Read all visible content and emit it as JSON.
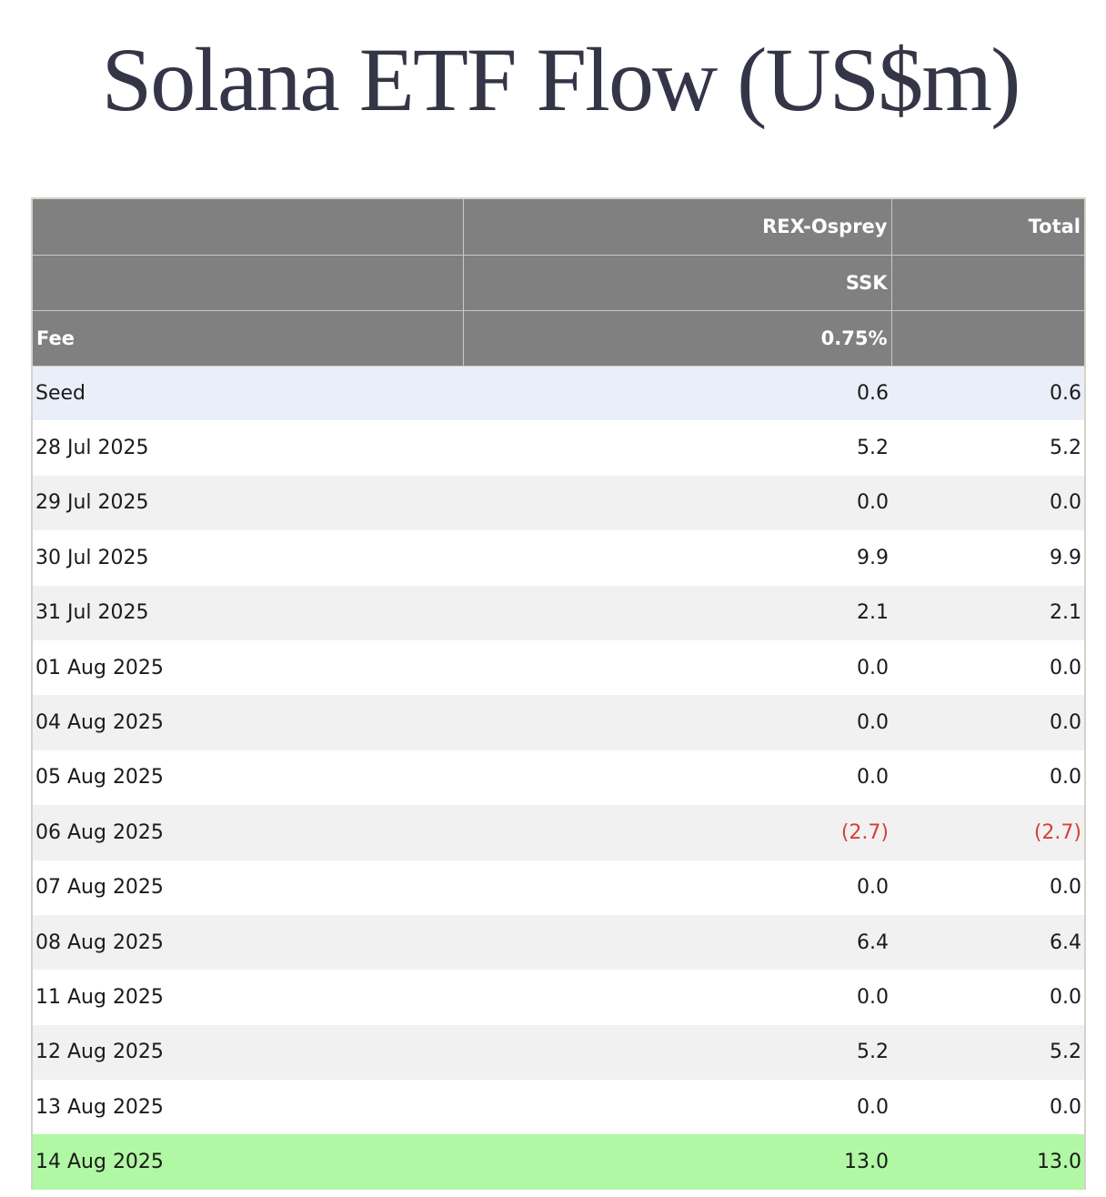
{
  "title": "Solana ETF Flow (US$m)",
  "colors": {
    "title": "#353548",
    "header_bg": "#808080",
    "seed_row_bg": "#e9eef8",
    "alt_row_bg": "#f1f1f1",
    "highlight_row_bg": "#b0f8a4",
    "negative_text": "#dc3c36"
  },
  "header": {
    "row1": [
      "",
      "REX-Osprey",
      "Total"
    ],
    "row2": [
      "",
      "SSK",
      ""
    ],
    "row3": [
      "Fee",
      "0.75%",
      ""
    ]
  },
  "rows": [
    {
      "date": "Seed",
      "ssk": "0.6",
      "total": "0.6",
      "style": "seed",
      "negative": false
    },
    {
      "date": "28 Jul 2025",
      "ssk": "5.2",
      "total": "5.2",
      "style": "white",
      "negative": false
    },
    {
      "date": "29 Jul 2025",
      "ssk": "0.0",
      "total": "0.0",
      "style": "gray",
      "negative": false
    },
    {
      "date": "30 Jul 2025",
      "ssk": "9.9",
      "total": "9.9",
      "style": "white",
      "negative": false
    },
    {
      "date": "31 Jul 2025",
      "ssk": "2.1",
      "total": "2.1",
      "style": "gray",
      "negative": false
    },
    {
      "date": "01 Aug 2025",
      "ssk": "0.0",
      "total": "0.0",
      "style": "white",
      "negative": false
    },
    {
      "date": "04 Aug 2025",
      "ssk": "0.0",
      "total": "0.0",
      "style": "gray",
      "negative": false
    },
    {
      "date": "05 Aug 2025",
      "ssk": "0.0",
      "total": "0.0",
      "style": "white",
      "negative": false
    },
    {
      "date": "06 Aug 2025",
      "ssk": "(2.7)",
      "total": "(2.7)",
      "style": "gray",
      "negative": true
    },
    {
      "date": "07 Aug 2025",
      "ssk": "0.0",
      "total": "0.0",
      "style": "white",
      "negative": false
    },
    {
      "date": "08 Aug 2025",
      "ssk": "6.4",
      "total": "6.4",
      "style": "gray",
      "negative": false
    },
    {
      "date": "11 Aug 2025",
      "ssk": "0.0",
      "total": "0.0",
      "style": "white",
      "negative": false
    },
    {
      "date": "12 Aug 2025",
      "ssk": "5.2",
      "total": "5.2",
      "style": "gray",
      "negative": false
    },
    {
      "date": "13 Aug 2025",
      "ssk": "0.0",
      "total": "0.0",
      "style": "white",
      "negative": false
    },
    {
      "date": "14 Aug 2025",
      "ssk": "13.0",
      "total": "13.0",
      "style": "green",
      "negative": false
    }
  ]
}
